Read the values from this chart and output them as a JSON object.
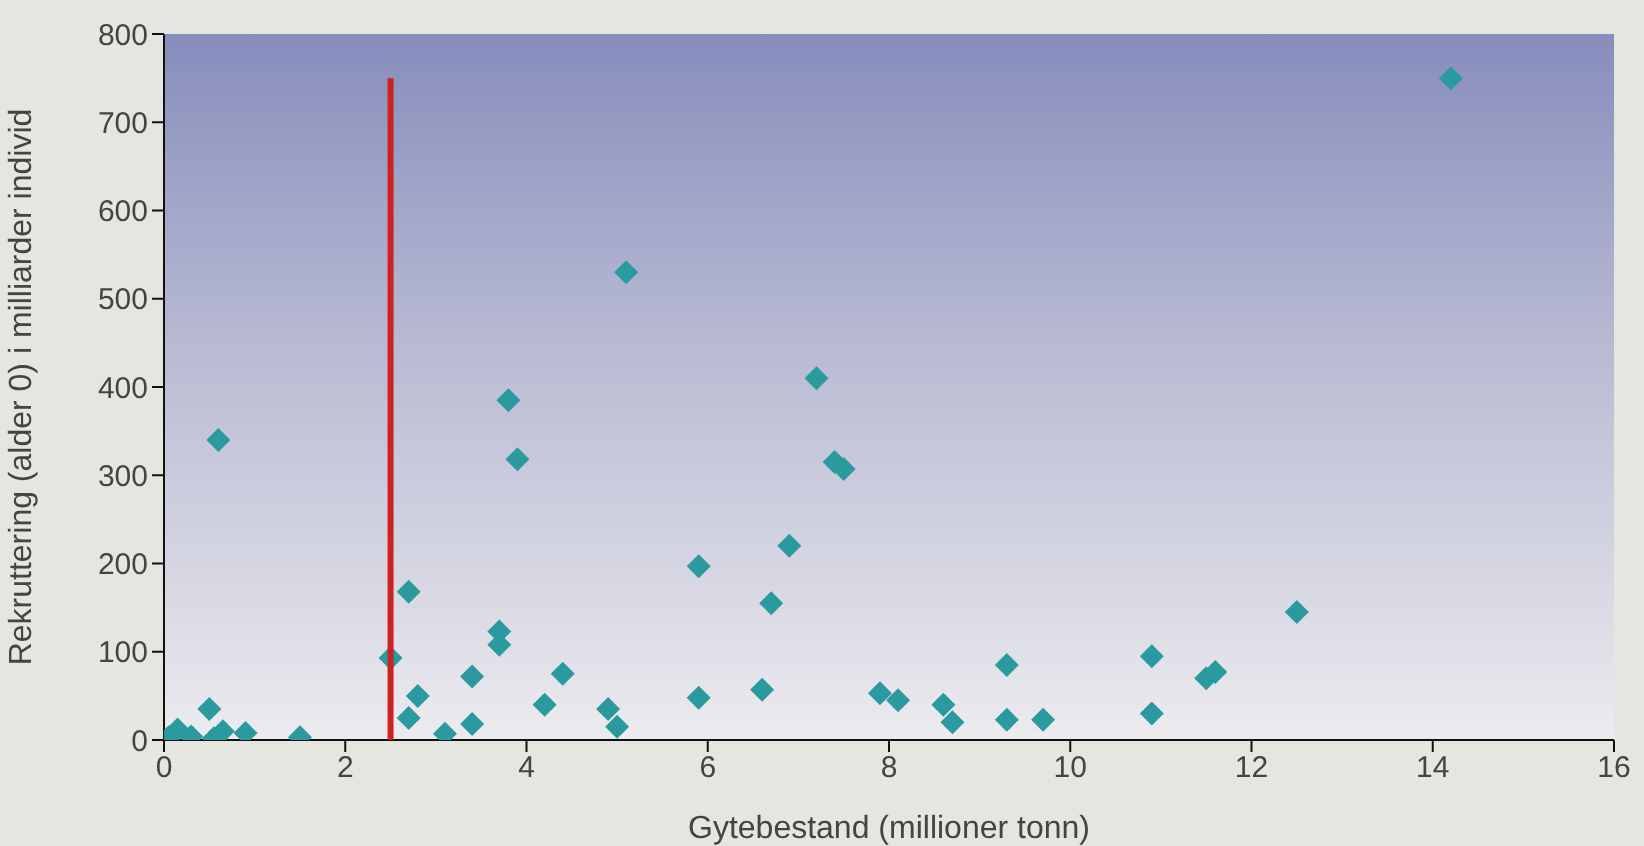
{
  "chart_data": {
    "type": "scatter",
    "xlabel": "Gytebestand (millioner tonn)",
    "ylabel": "Rekruttering (alder 0) i milliarder individ",
    "xlim": [
      0,
      16
    ],
    "xticks": [
      0,
      2,
      4,
      6,
      8,
      10,
      12,
      14,
      16
    ],
    "ylim": [
      0,
      800
    ],
    "yticks": [
      0,
      100,
      200,
      300,
      400,
      500,
      600,
      700,
      800
    ],
    "grid": false,
    "legend": false,
    "marker": "diamond",
    "series": [
      {
        "type": "scatter",
        "color": "#2a9a9e",
        "x": [
          0.05,
          0.15,
          0.3,
          0.5,
          0.55,
          0.65,
          0.6,
          0.9,
          1.5,
          2.5,
          2.7,
          2.7,
          2.8,
          3.1,
          3.4,
          3.4,
          3.7,
          3.7,
          3.8,
          3.9,
          4.2,
          4.4,
          4.9,
          5.0,
          5.1,
          5.9,
          5.9,
          6.6,
          6.7,
          6.9,
          7.2,
          7.4,
          7.5,
          7.9,
          8.1,
          8.6,
          8.7,
          9.3,
          9.3,
          9.7,
          10.9,
          10.9,
          11.5,
          11.6,
          12.5,
          14.2
        ],
        "values": [
          3,
          12,
          4,
          35,
          2,
          10,
          340,
          8,
          3,
          93,
          168,
          25,
          50,
          7,
          72,
          18,
          123,
          108,
          385,
          318,
          40,
          75,
          35,
          15,
          530,
          197,
          48,
          57,
          155,
          220,
          410,
          315,
          307,
          53,
          45,
          40,
          20,
          85,
          23,
          23,
          95,
          30,
          70,
          77,
          145,
          750
        ]
      },
      {
        "type": "line",
        "color": "#cc2222",
        "marker": "none",
        "x": [
          2.5,
          2.5
        ],
        "values": [
          0,
          750
        ]
      }
    ]
  }
}
